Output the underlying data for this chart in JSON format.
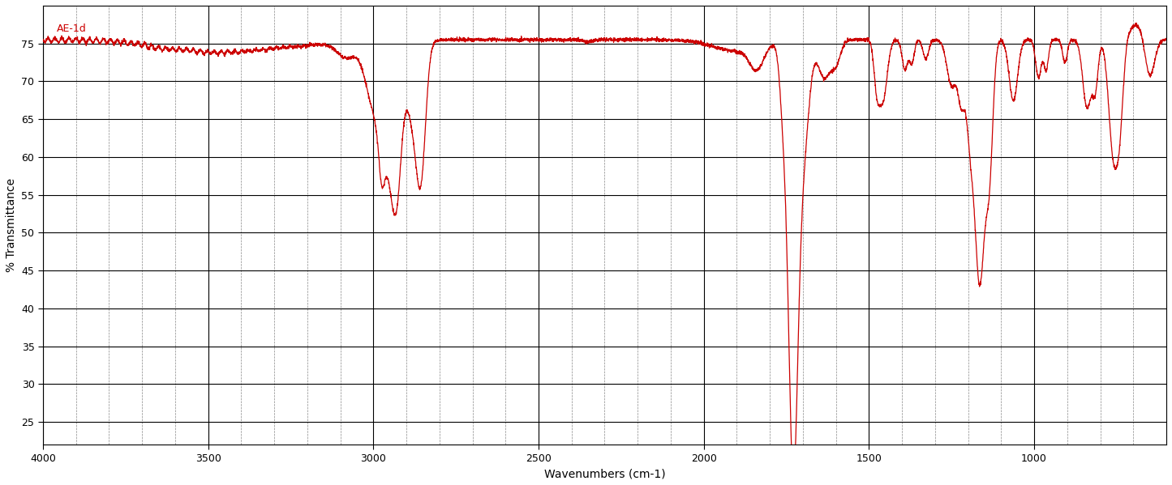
{
  "title": "",
  "xlabel": "Wavenumbers (cm-1)",
  "ylabel": "% Transmittance",
  "legend_label": "AE-1d",
  "legend_color": "#cc0000",
  "line_color": "#cc0000",
  "background_color": "#ffffff",
  "xlim": [
    4000,
    600
  ],
  "ylim": [
    22,
    80
  ],
  "yticks": [
    25,
    30,
    35,
    40,
    45,
    50,
    55,
    60,
    65,
    70,
    75
  ],
  "xticks": [
    4000,
    3500,
    3000,
    2500,
    2000,
    1500,
    1000
  ],
  "grid_major_color": "#000000",
  "grid_minor_color": "#888888",
  "figsize": [
    14.45,
    5.99
  ],
  "dpi": 100
}
